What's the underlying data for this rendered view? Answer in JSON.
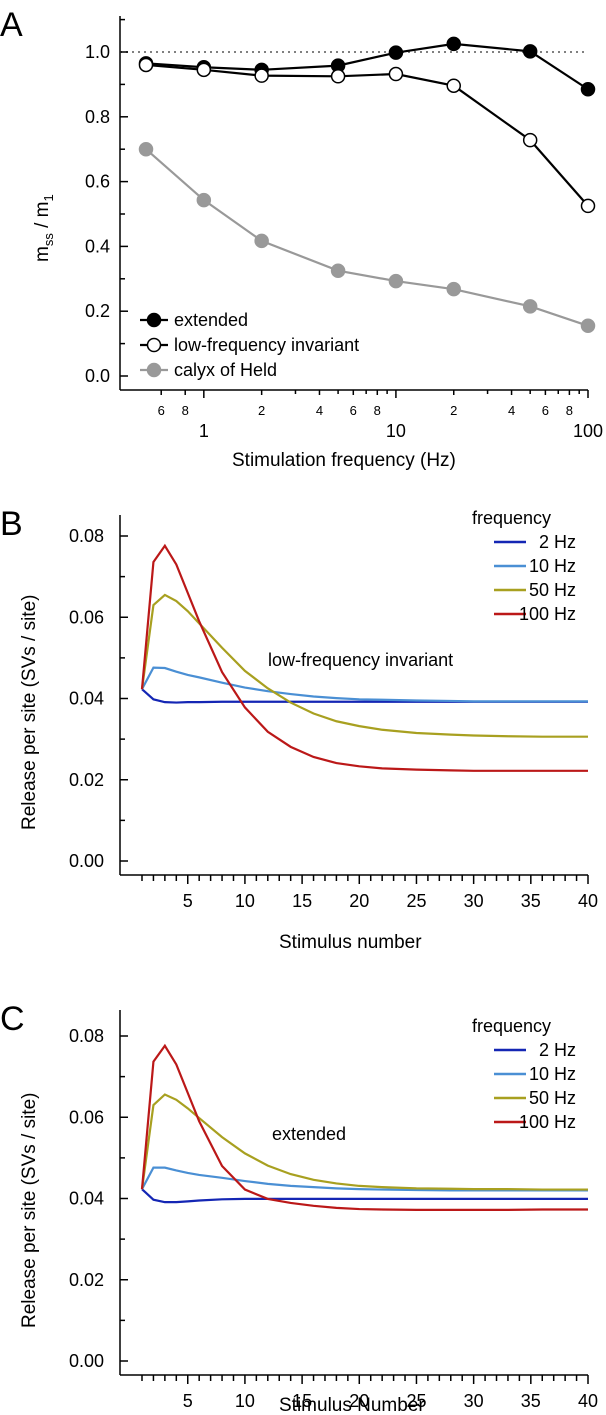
{
  "chart_data": [
    {
      "panel": "A",
      "type": "line",
      "xscale": "log",
      "xlabel": "Stimulation frequency (Hz)",
      "ylabel_main": "m",
      "ylabel_sub1": "ss",
      "ylabel_mid": " / m",
      "ylabel_sub2": "1",
      "xlim": [
        0.5,
        100
      ],
      "ylim": [
        0,
        1.1
      ],
      "x_major_ticks": [
        {
          "value": 1,
          "label": "1"
        },
        {
          "value": 10,
          "label": "10"
        },
        {
          "value": 100,
          "label": "100"
        }
      ],
      "x_minor_ticks": [
        {
          "value": 0.6,
          "label": "6"
        },
        {
          "value": 0.8,
          "label": "8"
        },
        {
          "value": 2,
          "label": "2"
        },
        {
          "value": 4,
          "label": "4"
        },
        {
          "value": 6,
          "label": "6"
        },
        {
          "value": 8,
          "label": "8"
        },
        {
          "value": 20,
          "label": "2"
        },
        {
          "value": 40,
          "label": "4"
        },
        {
          "value": 60,
          "label": "6"
        },
        {
          "value": 80,
          "label": "8"
        }
      ],
      "y_ticks": [
        {
          "value": 0.0,
          "label": "0.0"
        },
        {
          "value": 0.2,
          "label": "0.2"
        },
        {
          "value": 0.4,
          "label": "0.4"
        },
        {
          "value": 0.6,
          "label": "0.6"
        },
        {
          "value": 0.8,
          "label": "0.8"
        },
        {
          "value": 1.0,
          "label": "1.0"
        }
      ],
      "reference_line": {
        "y": 1.0,
        "style": "dotted",
        "color": "#808080"
      },
      "x": [
        0.5,
        1,
        2,
        5,
        10,
        20,
        50,
        100
      ],
      "series": [
        {
          "name": "extended",
          "marker": "filled",
          "color": "#000000",
          "values": [
            0.965,
            0.953,
            0.945,
            0.958,
            0.998,
            1.025,
            1.002,
            0.885
          ]
        },
        {
          "name": "low-frequency invariant",
          "marker": "open",
          "color": "#000000",
          "values": [
            0.96,
            0.945,
            0.927,
            0.925,
            0.932,
            0.896,
            0.728,
            0.525
          ]
        },
        {
          "name": "calyx of Held",
          "marker": "filled",
          "color": "#999999",
          "values": [
            0.7,
            0.543,
            0.417,
            0.325,
            0.293,
            0.268,
            0.215,
            0.155
          ]
        }
      ],
      "legend_position": "bottom-left"
    },
    {
      "panel": "B",
      "type": "line",
      "xlabel": "Stimulus number",
      "ylabel": "Release per site (SVs / site)",
      "annotation": "low-frequency invariant",
      "legend_title": "frequency",
      "legend_position": "top-right",
      "xlim": [
        0,
        40
      ],
      "ylim": [
        0,
        0.088
      ],
      "x_ticks": [
        {
          "value": 5,
          "label": "5"
        },
        {
          "value": 10,
          "label": "10"
        },
        {
          "value": 15,
          "label": "15"
        },
        {
          "value": 20,
          "label": "20"
        },
        {
          "value": 25,
          "label": "25"
        },
        {
          "value": 30,
          "label": "30"
        },
        {
          "value": 35,
          "label": "35"
        },
        {
          "value": 40,
          "label": "40"
        }
      ],
      "y_ticks": [
        {
          "value": 0.0,
          "label": "0.00"
        },
        {
          "value": 0.02,
          "label": "0.02"
        },
        {
          "value": 0.04,
          "label": "0.04"
        },
        {
          "value": 0.06,
          "label": "0.06"
        },
        {
          "value": 0.08,
          "label": "0.08"
        }
      ],
      "x": [
        1,
        2,
        3,
        4,
        5,
        6,
        8,
        10,
        12,
        14,
        16,
        18,
        20,
        22,
        25,
        28,
        30,
        33,
        36,
        40
      ],
      "series": [
        {
          "name": "2 Hz",
          "color": "#1426b4",
          "values": [
            0.0423,
            0.0398,
            0.0391,
            0.039,
            0.0391,
            0.0391,
            0.0392,
            0.0392,
            0.0392,
            0.0392,
            0.0392,
            0.0392,
            0.0392,
            0.0392,
            0.0392,
            0.0392,
            0.0392,
            0.0392,
            0.0392,
            0.0392
          ]
        },
        {
          "name": "10 Hz",
          "color": "#4a8fd4",
          "values": [
            0.0423,
            0.0476,
            0.0475,
            0.0466,
            0.0458,
            0.0452,
            0.0439,
            0.0427,
            0.0418,
            0.0411,
            0.0405,
            0.0401,
            0.0398,
            0.0397,
            0.0395,
            0.0394,
            0.0393,
            0.0393,
            0.0393,
            0.0393
          ]
        },
        {
          "name": "50 Hz",
          "color": "#a8a020",
          "values": [
            0.0423,
            0.063,
            0.0655,
            0.064,
            0.0615,
            0.0585,
            0.0525,
            0.0468,
            0.0425,
            0.039,
            0.0363,
            0.0344,
            0.0332,
            0.0323,
            0.0315,
            0.0311,
            0.0309,
            0.0307,
            0.0306,
            0.0306
          ]
        },
        {
          "name": "100 Hz",
          "color": "#bb1818",
          "values": [
            0.0423,
            0.0736,
            0.0776,
            0.073,
            0.066,
            0.059,
            0.0465,
            0.0378,
            0.0318,
            0.0281,
            0.0256,
            0.0241,
            0.0233,
            0.0228,
            0.0225,
            0.0223,
            0.0222,
            0.0222,
            0.0222,
            0.0222
          ]
        }
      ]
    },
    {
      "panel": "C",
      "type": "line",
      "xlabel": "Stimulus Number",
      "ylabel": "Release per site (SVs / site)",
      "annotation": "extended",
      "legend_title": "frequency",
      "legend_position": "top-right",
      "xlim": [
        0,
        40
      ],
      "ylim": [
        0,
        0.088
      ],
      "x_ticks": [
        {
          "value": 5,
          "label": "5"
        },
        {
          "value": 10,
          "label": "10"
        },
        {
          "value": 15,
          "label": "15"
        },
        {
          "value": 20,
          "label": "20"
        },
        {
          "value": 25,
          "label": "25"
        },
        {
          "value": 30,
          "label": "30"
        },
        {
          "value": 35,
          "label": "35"
        },
        {
          "value": 40,
          "label": "40"
        }
      ],
      "y_ticks": [
        {
          "value": 0.0,
          "label": "0.00"
        },
        {
          "value": 0.02,
          "label": "0.02"
        },
        {
          "value": 0.04,
          "label": "0.04"
        },
        {
          "value": 0.06,
          "label": "0.06"
        },
        {
          "value": 0.08,
          "label": "0.08"
        }
      ],
      "x": [
        1,
        2,
        3,
        4,
        5,
        6,
        8,
        10,
        12,
        14,
        16,
        18,
        20,
        22,
        25,
        28,
        30,
        33,
        36,
        40
      ],
      "series": [
        {
          "name": "2 Hz",
          "color": "#1426b4",
          "values": [
            0.0423,
            0.0397,
            0.0391,
            0.0391,
            0.0393,
            0.0395,
            0.0398,
            0.0399,
            0.0399,
            0.0399,
            0.0399,
            0.0399,
            0.0399,
            0.0399,
            0.0399,
            0.0399,
            0.0399,
            0.0399,
            0.0399,
            0.0399
          ]
        },
        {
          "name": "10 Hz",
          "color": "#4a8fd4",
          "values": [
            0.0423,
            0.0476,
            0.0476,
            0.0469,
            0.0463,
            0.0458,
            0.0451,
            0.0443,
            0.0436,
            0.0431,
            0.0428,
            0.0425,
            0.0423,
            0.0422,
            0.0421,
            0.042,
            0.042,
            0.042,
            0.042,
            0.042
          ]
        },
        {
          "name": "50 Hz",
          "color": "#a8a020",
          "values": [
            0.0423,
            0.063,
            0.0656,
            0.0643,
            0.0622,
            0.0598,
            0.0551,
            0.0511,
            0.0481,
            0.046,
            0.0446,
            0.0437,
            0.0431,
            0.0428,
            0.0425,
            0.0424,
            0.0423,
            0.0423,
            0.0422,
            0.0422
          ]
        },
        {
          "name": "100 Hz",
          "color": "#bb1818",
          "values": [
            0.0423,
            0.0737,
            0.0776,
            0.073,
            0.066,
            0.059,
            0.048,
            0.0422,
            0.0399,
            0.0389,
            0.0382,
            0.0377,
            0.0374,
            0.0373,
            0.0372,
            0.0372,
            0.0372,
            0.0372,
            0.0373,
            0.0373
          ]
        }
      ]
    }
  ]
}
